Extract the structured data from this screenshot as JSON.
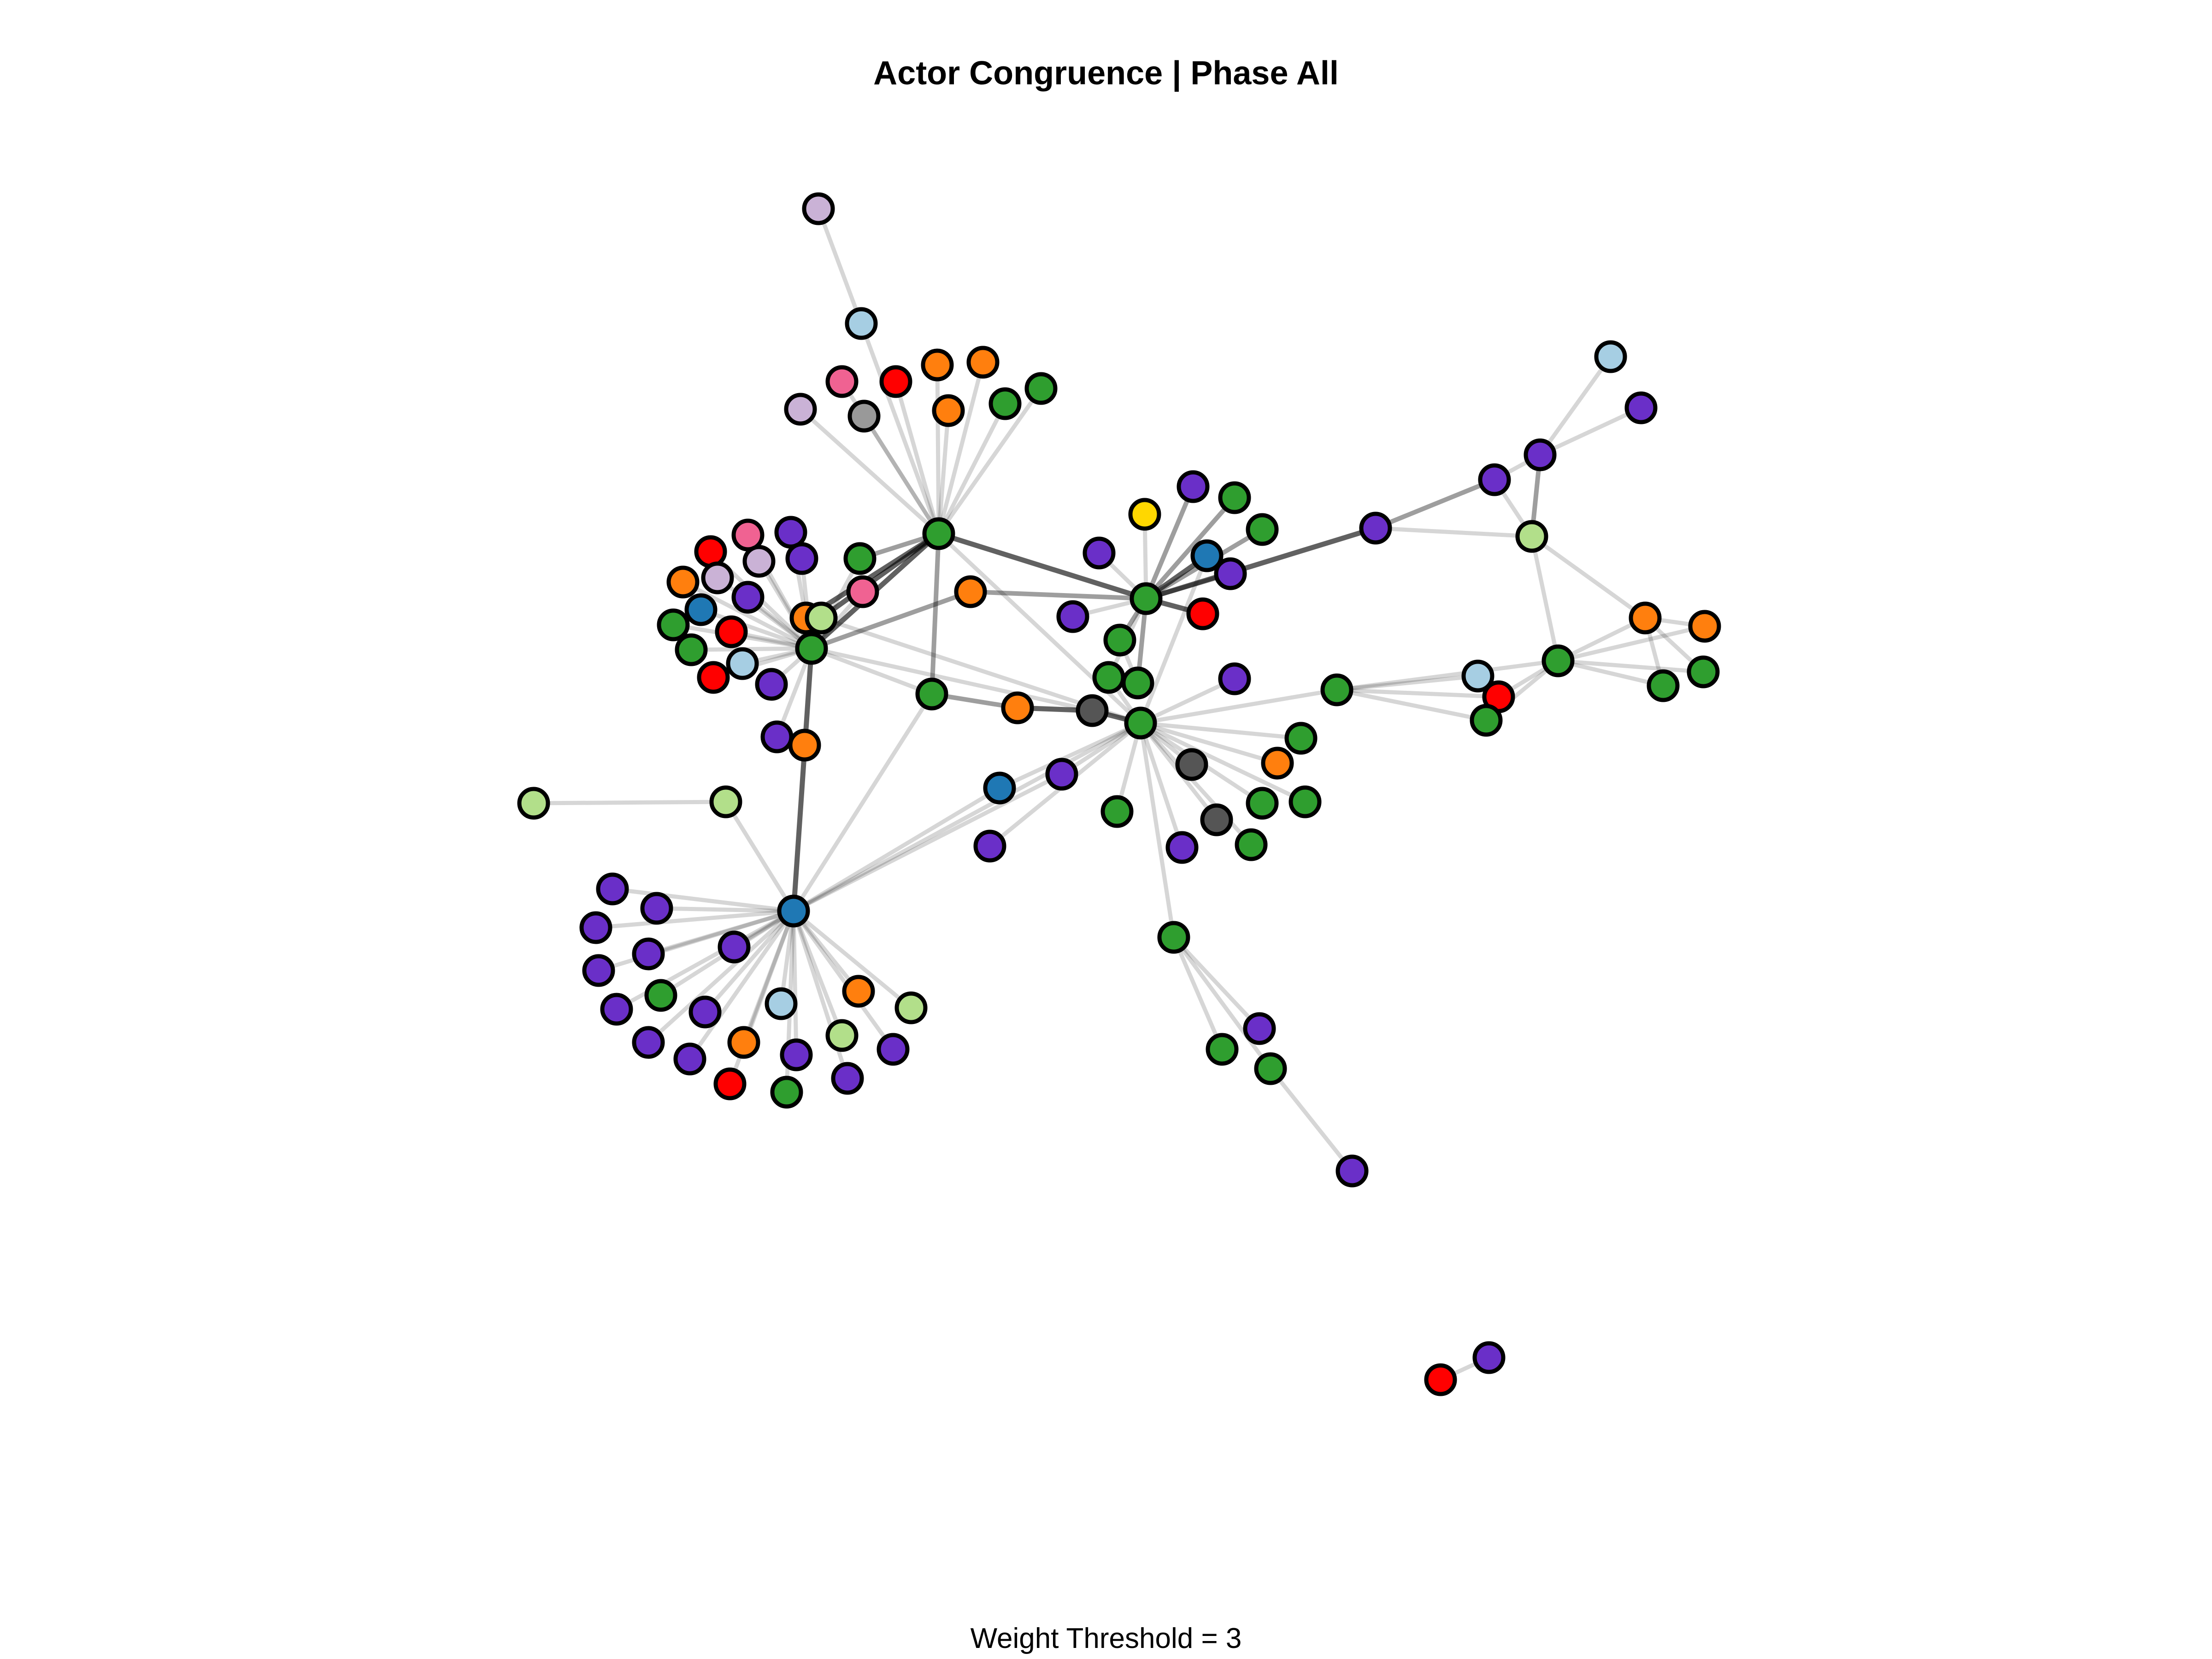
{
  "title": "Actor Congruence | Phase All",
  "caption": "Weight Threshold = 3",
  "colors": {
    "purple": "#6a2fc8",
    "green": "#2f9e2f",
    "orange": "#ff7f0e",
    "red": "#ff0000",
    "lightblue": "#a6cee3",
    "blue": "#1f78b4",
    "lightgreen": "#b2df8a",
    "pink": "#f06292",
    "lavender": "#cab2d6",
    "gray": "#999999",
    "darkgray": "#555555",
    "yellow": "#ffd700",
    "outline": "#000000"
  }
}
